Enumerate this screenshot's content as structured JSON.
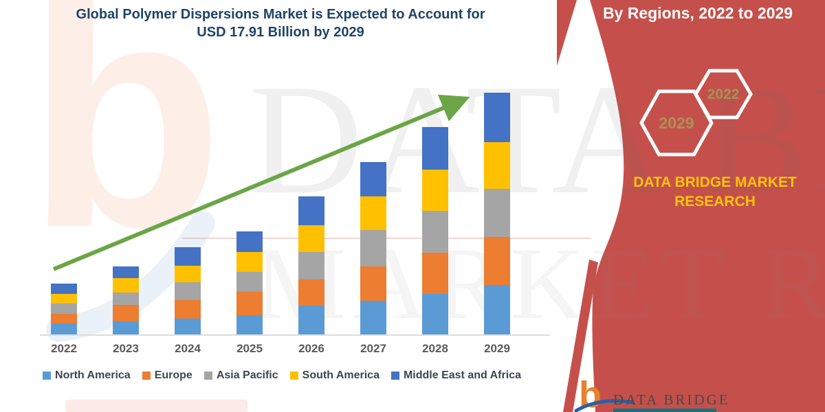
{
  "title": {
    "line1": "Global Polymer Dispersions Market is Expected to Account for",
    "line2": "USD 17.91 Billion by 2029"
  },
  "watermark": {
    "glyph": "b",
    "line1": "DATA BRIDGE",
    "line2": "MARKET RESEARCH"
  },
  "panel": {
    "heading": "By Regions, 2022 to 2029",
    "bg_color": "#C5504B",
    "hexagons": [
      {
        "label": "2029"
      },
      {
        "label": "2022"
      }
    ],
    "brand_line1": "DATA BRIDGE MARKET",
    "brand_line2": "RESEARCH",
    "brand_color": "#FDC40B",
    "logo_glyph": "b",
    "logo_text": "DATA BRIDGE"
  },
  "chart_data": {
    "type": "bar",
    "stacked": true,
    "title": "Global Polymer Dispersions Market is Expected to Account for USD 17.91 Billion by 2029",
    "unit": "USD Billion",
    "categories": [
      "2022",
      "2023",
      "2024",
      "2025",
      "2026",
      "2027",
      "2028",
      "2029"
    ],
    "series": [
      {
        "name": "North America",
        "color": "#5B9BD5",
        "values": [
          0.81,
          0.97,
          1.15,
          1.42,
          2.14,
          2.49,
          3.0,
          3.66
        ]
      },
      {
        "name": "Europe",
        "color": "#ED7D31",
        "values": [
          0.71,
          1.22,
          1.39,
          1.73,
          1.93,
          2.54,
          3.05,
          3.56
        ]
      },
      {
        "name": "Asia Pacific",
        "color": "#A5A5A5",
        "values": [
          0.76,
          0.92,
          1.32,
          1.48,
          2.04,
          2.7,
          3.1,
          3.56
        ]
      },
      {
        "name": "South America",
        "color": "#FFC000",
        "values": [
          0.71,
          1.07,
          1.22,
          1.48,
          1.98,
          2.49,
          3.05,
          3.46
        ]
      },
      {
        "name": "Middle East and Africa",
        "color": "#4472C4",
        "values": [
          0.78,
          0.88,
          1.36,
          1.53,
          2.14,
          2.54,
          3.15,
          3.67
        ]
      }
    ],
    "totals": [
      3.77,
      5.06,
      6.44,
      7.64,
      10.23,
      12.76,
      15.35,
      17.91
    ],
    "ylim": [
      0,
      18
    ],
    "gridlines": false,
    "legend_position": "bottom",
    "trend_arrow_color": "#6BA547",
    "xlabel": "",
    "ylabel": ""
  }
}
